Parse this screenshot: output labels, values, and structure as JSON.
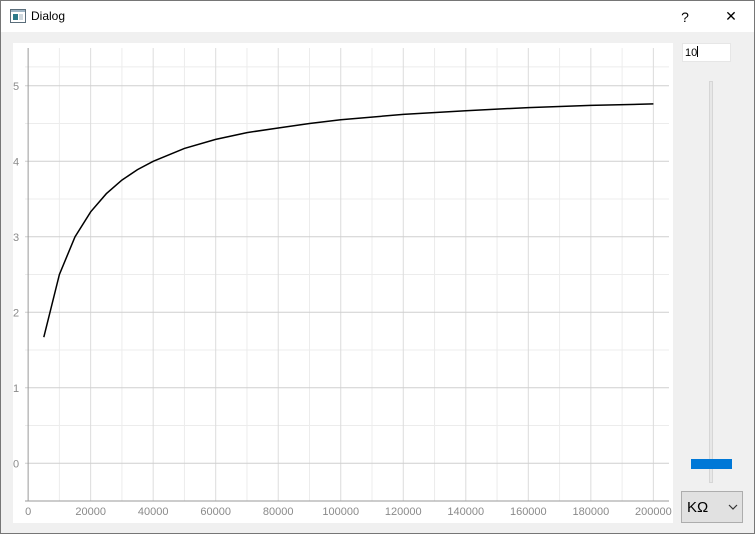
{
  "window": {
    "title": "Dialog"
  },
  "titlebar": {
    "help_label": "?",
    "close_label": "✕"
  },
  "controls": {
    "input_value": "10",
    "slider_fraction": 0.02,
    "unit_selected": "KΩ"
  },
  "chart_data": {
    "type": "line",
    "title": "",
    "xlabel": "",
    "ylabel": "",
    "xlim": [
      -1000,
      205000
    ],
    "ylim": [
      -0.5,
      5.5
    ],
    "x_ticks": [
      0,
      20000,
      40000,
      60000,
      80000,
      100000,
      120000,
      140000,
      160000,
      180000,
      200000
    ],
    "x_tick_labels": [
      "0",
      "20000",
      "40000",
      "60000",
      "80000",
      "100000",
      "120000",
      "140000",
      "160000",
      "180000",
      "200000"
    ],
    "y_ticks": [
      0,
      1,
      2,
      3,
      4,
      5
    ],
    "y_tick_labels": [
      "0",
      "1",
      "2",
      "3",
      "4",
      "5"
    ],
    "grid": true,
    "series": [
      {
        "color": "#000000",
        "x": [
          5000,
          10000,
          15000,
          20000,
          25000,
          30000,
          35000,
          40000,
          50000,
          60000,
          70000,
          80000,
          90000,
          100000,
          120000,
          140000,
          160000,
          180000,
          200000
        ],
        "y": [
          1.67,
          2.5,
          3.0,
          3.33,
          3.57,
          3.75,
          3.89,
          4.0,
          4.17,
          4.29,
          4.38,
          4.44,
          4.5,
          4.55,
          4.62,
          4.67,
          4.71,
          4.74,
          4.76
        ]
      }
    ]
  }
}
